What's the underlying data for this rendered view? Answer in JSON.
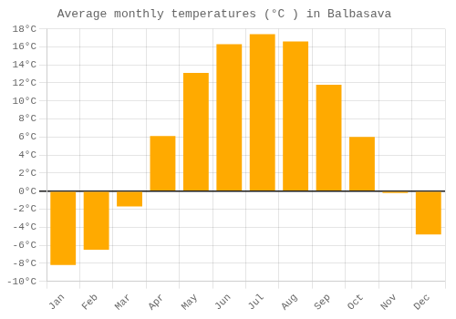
{
  "chart_data": {
    "type": "bar",
    "title": "Average monthly temperatures (°C ) in Balbasava",
    "categories": [
      "Jan",
      "Feb",
      "Mar",
      "Apr",
      "May",
      "Jun",
      "Jul",
      "Aug",
      "Sep",
      "Oct",
      "Nov",
      "Dec"
    ],
    "values": [
      -8.2,
      -6.5,
      -1.7,
      6.1,
      13.1,
      16.3,
      17.4,
      16.6,
      11.8,
      6.0,
      -0.2,
      -4.8
    ],
    "color": "#FFAA00",
    "ylim": [
      -10,
      18
    ],
    "yticks": [
      {
        "value": -10,
        "label": "-10°C"
      },
      {
        "value": -8,
        "label": "-8°C"
      },
      {
        "value": -6,
        "label": "-6°C"
      },
      {
        "value": -4,
        "label": "-4°C"
      },
      {
        "value": -2,
        "label": "-2°C"
      },
      {
        "value": 0,
        "label": "0°C"
      },
      {
        "value": 2,
        "label": "2°C"
      },
      {
        "value": 4,
        "label": "4°C"
      },
      {
        "value": 6,
        "label": "6°C"
      },
      {
        "value": 8,
        "label": "8°C"
      },
      {
        "value": 10,
        "label": "10°C"
      },
      {
        "value": 12,
        "label": "12°C"
      },
      {
        "value": 14,
        "label": "14°C"
      },
      {
        "value": 16,
        "label": "16°C"
      },
      {
        "value": 18,
        "label": "18°C"
      }
    ],
    "grid": true
  }
}
